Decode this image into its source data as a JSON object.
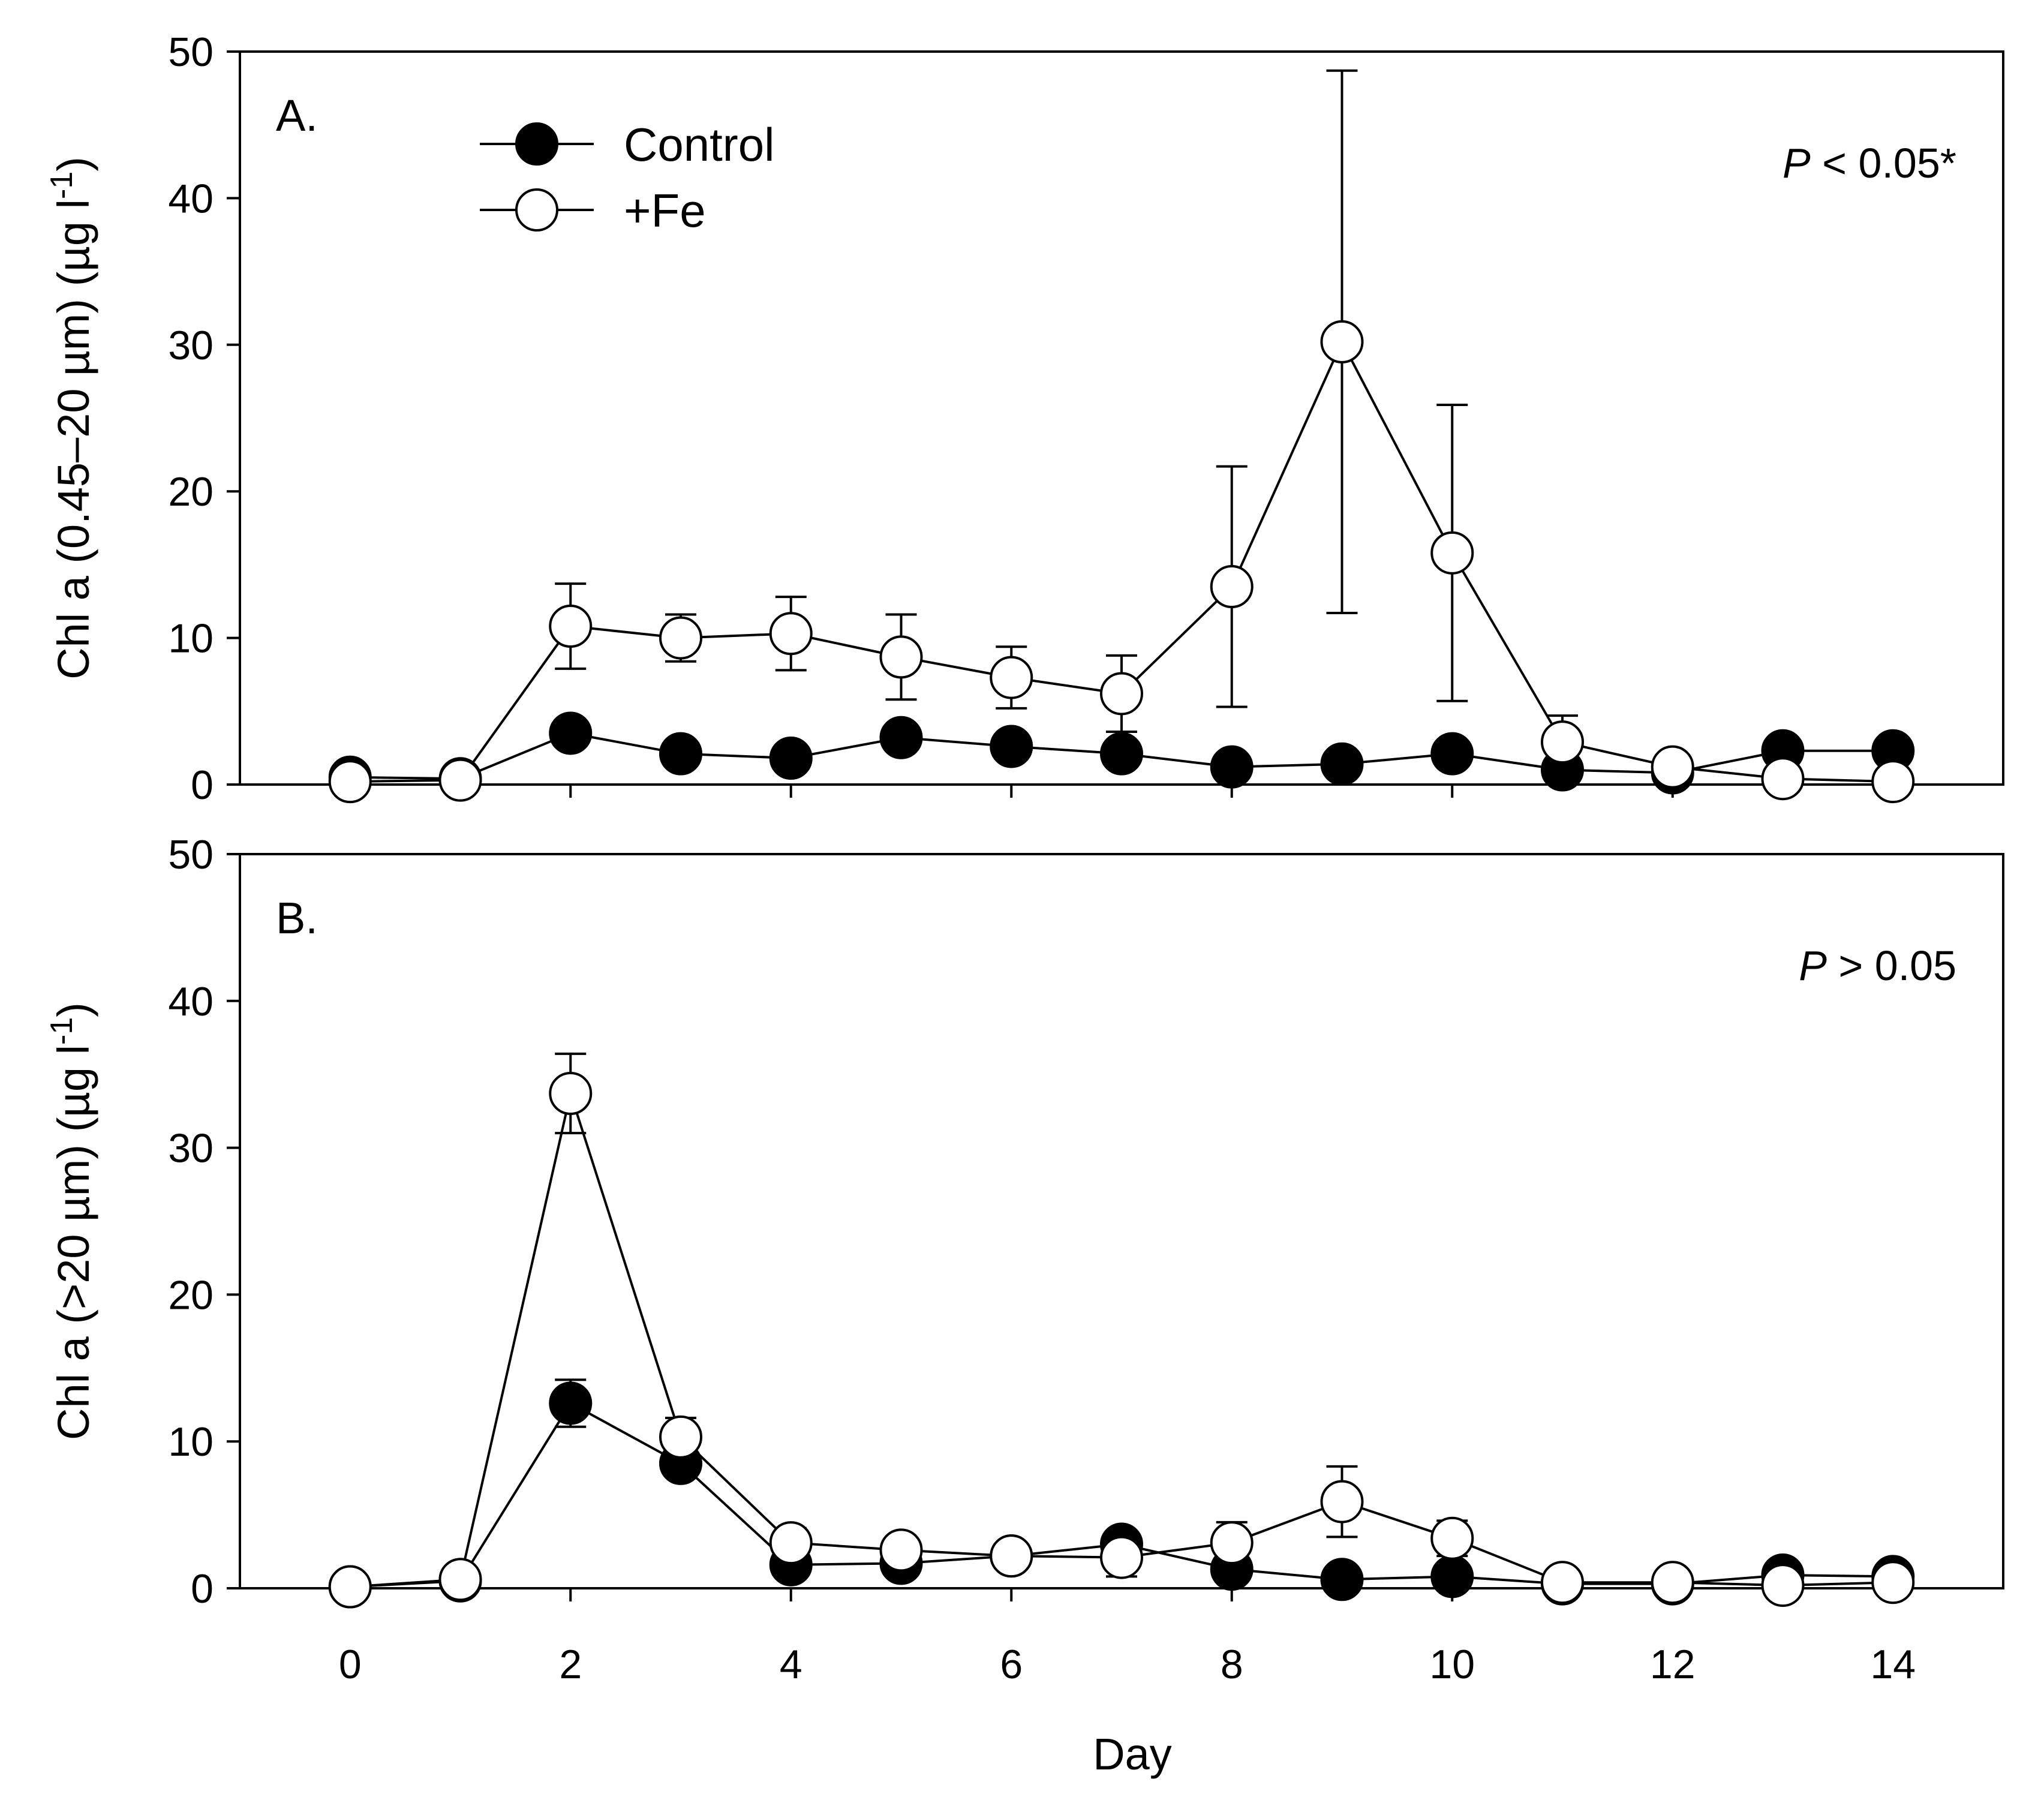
{
  "figure": {
    "xlabel": "Day",
    "x_ticks": [
      0,
      2,
      4,
      6,
      8,
      10,
      12,
      14
    ],
    "legend": [
      {
        "name": "Control",
        "marker": "filled-circle"
      },
      {
        "name": "+Fe",
        "marker": "open-circle"
      }
    ]
  },
  "chart_data": [
    {
      "type": "line",
      "panel": "A.",
      "pvalue": {
        "italic": "P",
        "text": " < 0.05*"
      },
      "ylabel": "Chl a (0.45–20 µm) (µg l",
      "ylabel_sup": "-1",
      "ylabel_close": ")",
      "xlim": [
        -1,
        15
      ],
      "ylim": [
        0,
        50
      ],
      "y_ticks": [
        0,
        10,
        20,
        30,
        40,
        50
      ],
      "x": [
        0,
        1,
        2,
        3,
        4,
        5,
        6,
        7,
        8,
        9,
        10,
        11,
        12,
        13,
        14
      ],
      "series": [
        {
          "name": "Control",
          "values": [
            0.5,
            0.4,
            3.5,
            2.1,
            1.8,
            3.2,
            2.6,
            2.1,
            1.2,
            1.4,
            2.1,
            1.0,
            0.8,
            2.3,
            2.3
          ],
          "errors": [
            0.3,
            0.2,
            0.9,
            0.6,
            0.5,
            0.6,
            0.8,
            0.8,
            0.5,
            0.5,
            0.5,
            0.5,
            0.4,
            0.6,
            0.9
          ]
        },
        {
          "name": "+Fe",
          "values": [
            0.2,
            0.3,
            10.8,
            10.0,
            10.3,
            8.7,
            7.3,
            6.2,
            13.5,
            30.2,
            15.8,
            2.9,
            1.2,
            0.4,
            0.2
          ],
          "errors": [
            0.2,
            0.2,
            2.9,
            1.6,
            2.5,
            2.9,
            2.1,
            2.6,
            8.2,
            18.5,
            10.1,
            1.8,
            0.3,
            0.2,
            0.2
          ]
        }
      ]
    },
    {
      "type": "line",
      "panel": "B.",
      "pvalue": {
        "italic": "P",
        "text": " > 0.05"
      },
      "ylabel": "Chl a (>20 µm) (µg l",
      "ylabel_sup": "-1",
      "ylabel_close": ")",
      "xlim": [
        -1,
        15
      ],
      "ylim": [
        0,
        50
      ],
      "y_ticks": [
        0,
        10,
        20,
        30,
        40,
        50
      ],
      "x": [
        0,
        1,
        2,
        3,
        4,
        5,
        6,
        7,
        8,
        9,
        10,
        11,
        12,
        13,
        14
      ],
      "series": [
        {
          "name": "Control",
          "values": [
            0.1,
            0.5,
            12.6,
            8.5,
            1.6,
            1.7,
            2.2,
            3.0,
            1.3,
            0.6,
            0.8,
            0.3,
            0.3,
            0.9,
            0.8
          ],
          "errors": [
            0.1,
            0.2,
            1.6,
            0.8,
            0.5,
            0.5,
            0.5,
            0.6,
            0.5,
            0.3,
            0.3,
            0.2,
            0.2,
            0.3,
            0.3
          ]
        },
        {
          "name": "+Fe",
          "values": [
            0.1,
            0.6,
            33.7,
            10.3,
            3.1,
            2.6,
            2.2,
            2.1,
            3.1,
            5.9,
            3.4,
            0.4,
            0.4,
            0.2,
            0.4
          ],
          "errors": [
            0.1,
            0.2,
            2.7,
            1.3,
            1.0,
            0.6,
            0.8,
            1.3,
            1.4,
            2.4,
            1.2,
            0.2,
            0.2,
            0.2,
            0.2
          ]
        }
      ]
    }
  ]
}
